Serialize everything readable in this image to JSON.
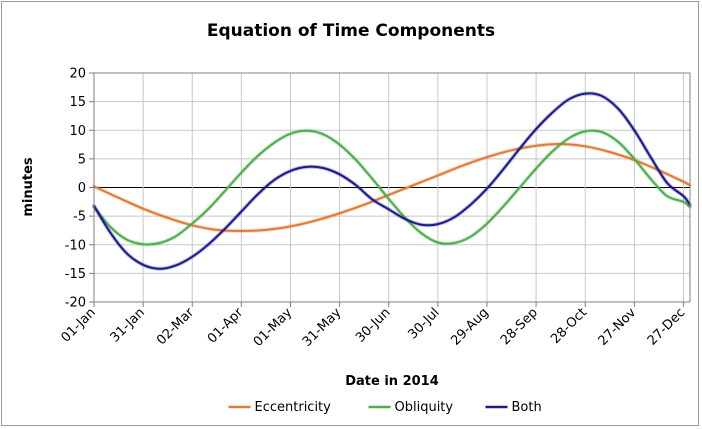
{
  "chart_data": {
    "type": "line",
    "title": "Equation of Time Components",
    "xlabel": "Date in 2014",
    "ylabel": "minutes",
    "ylim": [
      -20,
      20
    ],
    "yticks": [
      -20,
      -15,
      -10,
      -5,
      0,
      5,
      10,
      15,
      20
    ],
    "xlim": [
      "2014-01-01",
      "2014-12-31"
    ],
    "xticks": [
      {
        "date": "2014-01-01",
        "label": "01-Jan"
      },
      {
        "date": "2014-01-31",
        "label": "31-Jan"
      },
      {
        "date": "2014-03-02",
        "label": "02-Mar"
      },
      {
        "date": "2014-04-01",
        "label": "01-Apr"
      },
      {
        "date": "2014-05-01",
        "label": "01-May"
      },
      {
        "date": "2014-05-31",
        "label": "31-May"
      },
      {
        "date": "2014-06-30",
        "label": "30-Jun"
      },
      {
        "date": "2014-07-30",
        "label": "30-Jul"
      },
      {
        "date": "2014-08-29",
        "label": "29-Aug"
      },
      {
        "date": "2014-09-28",
        "label": "28-Sep"
      },
      {
        "date": "2014-10-28",
        "label": "28-Oct"
      },
      {
        "date": "2014-11-27",
        "label": "27-Nov"
      },
      {
        "date": "2014-12-27",
        "label": "27-Dec"
      }
    ],
    "grid": true,
    "legend_position": "bottom",
    "series": [
      {
        "name": "Eccentricity",
        "color": "#e07b35",
        "points": [
          [
            "2014-01-01",
            0.2
          ],
          [
            "2014-01-16",
            -1.8
          ],
          [
            "2014-01-31",
            -3.7
          ],
          [
            "2014-02-15",
            -5.3
          ],
          [
            "2014-03-02",
            -6.6
          ],
          [
            "2014-03-17",
            -7.4
          ],
          [
            "2014-04-01",
            -7.6
          ],
          [
            "2014-04-16",
            -7.4
          ],
          [
            "2014-05-01",
            -6.8
          ],
          [
            "2014-05-16",
            -5.8
          ],
          [
            "2014-05-31",
            -4.5
          ],
          [
            "2014-06-15",
            -3.0
          ],
          [
            "2014-06-30",
            -1.3
          ],
          [
            "2014-07-15",
            0.4
          ],
          [
            "2014-07-30",
            2.1
          ],
          [
            "2014-08-14",
            3.8
          ],
          [
            "2014-08-29",
            5.3
          ],
          [
            "2014-09-13",
            6.5
          ],
          [
            "2014-09-28",
            7.3
          ],
          [
            "2014-10-13",
            7.6
          ],
          [
            "2014-10-28",
            7.2
          ],
          [
            "2014-11-12",
            6.2
          ],
          [
            "2014-11-27",
            4.8
          ],
          [
            "2014-12-12",
            3.0
          ],
          [
            "2014-12-27",
            1.0
          ],
          [
            "2014-12-31",
            0.4
          ]
        ]
      },
      {
        "name": "Obliquity",
        "color": "#4cae4c",
        "points": [
          [
            "2014-01-01",
            -3.4
          ],
          [
            "2014-01-11",
            -6.9
          ],
          [
            "2014-01-21",
            -9.1
          ],
          [
            "2014-01-31",
            -9.9
          ],
          [
            "2014-02-10",
            -9.7
          ],
          [
            "2014-02-20",
            -8.5
          ],
          [
            "2014-03-02",
            -6.3
          ],
          [
            "2014-03-12",
            -3.7
          ],
          [
            "2014-03-22",
            -0.6
          ],
          [
            "2014-04-01",
            2.6
          ],
          [
            "2014-04-11",
            5.5
          ],
          [
            "2014-04-21",
            7.8
          ],
          [
            "2014-05-01",
            9.4
          ],
          [
            "2014-05-11",
            9.9
          ],
          [
            "2014-05-21",
            9.3
          ],
          [
            "2014-05-31",
            7.5
          ],
          [
            "2014-06-10",
            4.8
          ],
          [
            "2014-06-20",
            1.5
          ],
          [
            "2014-06-30",
            -2.0
          ],
          [
            "2014-07-10",
            -5.3
          ],
          [
            "2014-07-20",
            -8.0
          ],
          [
            "2014-07-30",
            -9.6
          ],
          [
            "2014-08-09",
            -9.7
          ],
          [
            "2014-08-19",
            -8.6
          ],
          [
            "2014-08-29",
            -6.3
          ],
          [
            "2014-09-08",
            -3.3
          ],
          [
            "2014-09-18",
            0.0
          ],
          [
            "2014-09-28",
            3.3
          ],
          [
            "2014-10-08",
            6.3
          ],
          [
            "2014-10-18",
            8.6
          ],
          [
            "2014-10-28",
            9.8
          ],
          [
            "2014-11-07",
            9.7
          ],
          [
            "2014-11-17",
            8.0
          ],
          [
            "2014-11-27",
            5.0
          ],
          [
            "2014-12-07",
            1.5
          ],
          [
            "2014-12-17",
            -1.5
          ],
          [
            "2014-12-27",
            -2.5
          ],
          [
            "2014-12-31",
            -3.4
          ]
        ]
      },
      {
        "name": "Both",
        "color": "#1a1a8c",
        "points": [
          [
            "2014-01-01",
            -3.2
          ],
          [
            "2014-01-11",
            -7.9
          ],
          [
            "2014-01-21",
            -11.5
          ],
          [
            "2014-01-31",
            -13.5
          ],
          [
            "2014-02-10",
            -14.2
          ],
          [
            "2014-02-20",
            -13.6
          ],
          [
            "2014-03-02",
            -12.1
          ],
          [
            "2014-03-12",
            -9.9
          ],
          [
            "2014-03-22",
            -7.2
          ],
          [
            "2014-04-01",
            -4.2
          ],
          [
            "2014-04-11",
            -1.2
          ],
          [
            "2014-04-21",
            1.3
          ],
          [
            "2014-05-01",
            2.9
          ],
          [
            "2014-05-11",
            3.6
          ],
          [
            "2014-05-21",
            3.4
          ],
          [
            "2014-05-31",
            2.3
          ],
          [
            "2014-06-10",
            0.4
          ],
          [
            "2014-06-20",
            -2.1
          ],
          [
            "2014-06-30",
            -3.8
          ],
          [
            "2014-07-10",
            -5.5
          ],
          [
            "2014-07-20",
            -6.5
          ],
          [
            "2014-07-30",
            -6.4
          ],
          [
            "2014-08-09",
            -5.2
          ],
          [
            "2014-08-19",
            -3.0
          ],
          [
            "2014-08-29",
            -0.2
          ],
          [
            "2014-09-08",
            3.2
          ],
          [
            "2014-09-18",
            6.8
          ],
          [
            "2014-09-28",
            10.2
          ],
          [
            "2014-10-08",
            13.1
          ],
          [
            "2014-10-18",
            15.4
          ],
          [
            "2014-10-28",
            16.4
          ],
          [
            "2014-11-07",
            16.0
          ],
          [
            "2014-11-17",
            13.8
          ],
          [
            "2014-11-27",
            10.0
          ],
          [
            "2014-12-07",
            5.3
          ],
          [
            "2014-12-17",
            0.8
          ],
          [
            "2014-12-27",
            -1.5
          ],
          [
            "2014-12-31",
            -3.0
          ]
        ]
      }
    ]
  }
}
